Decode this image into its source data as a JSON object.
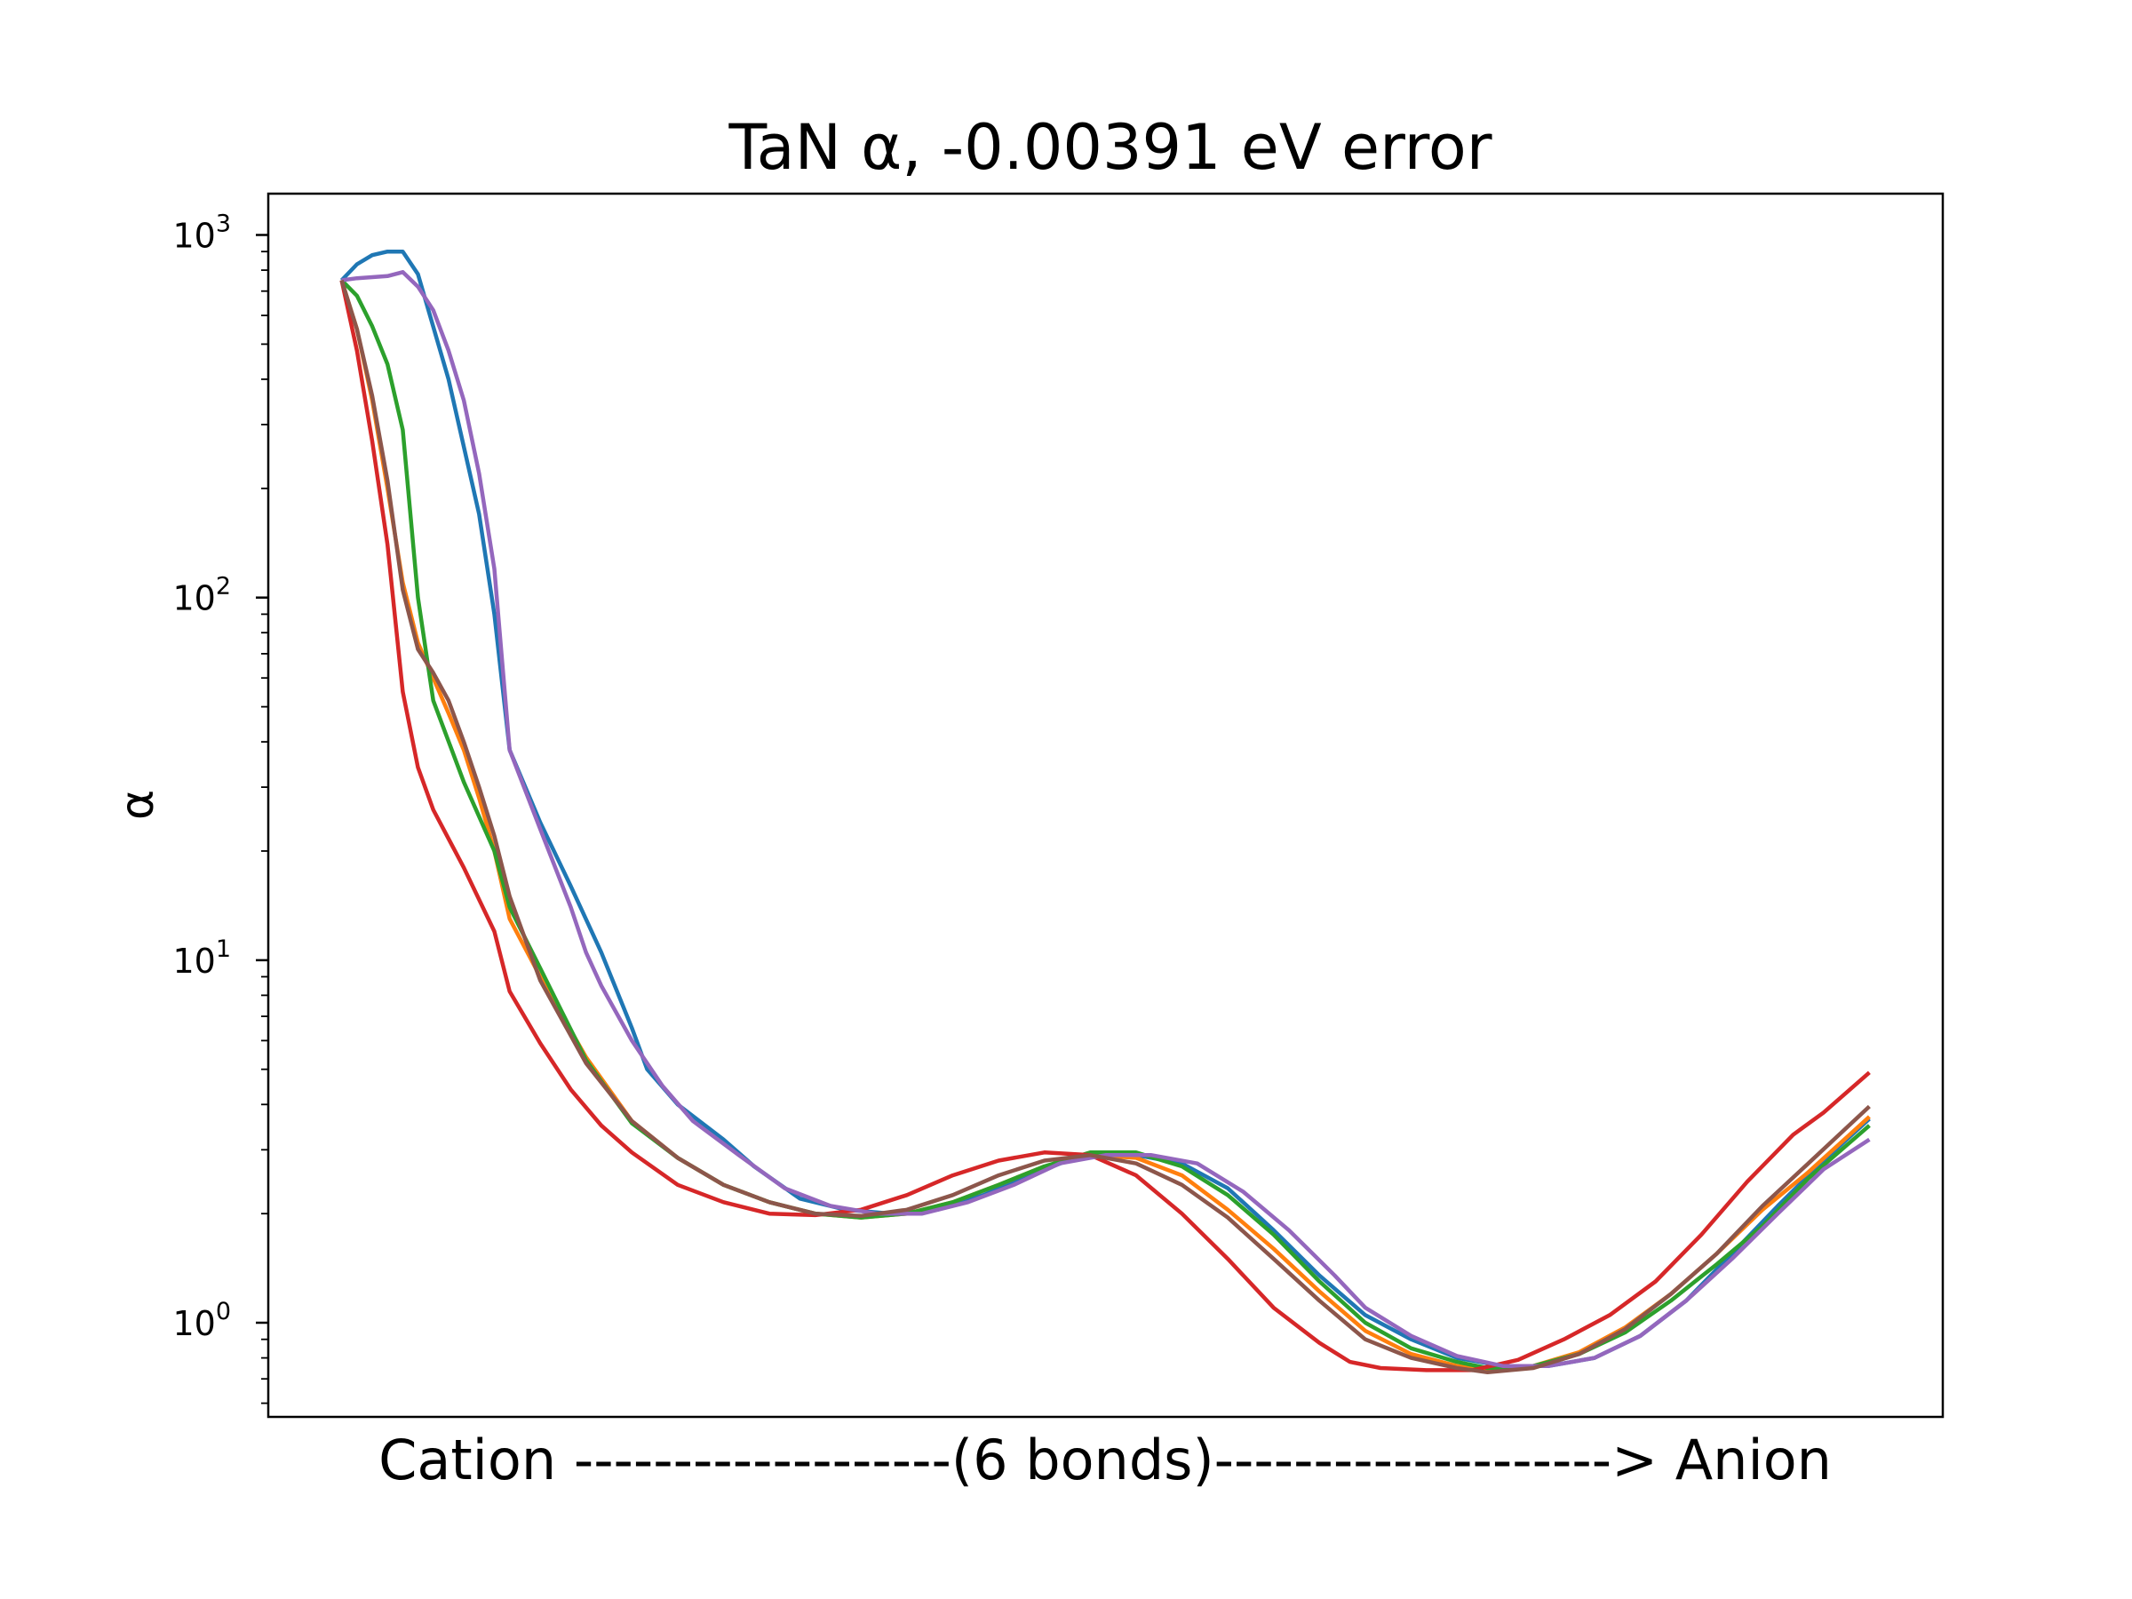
{
  "chart_data": {
    "type": "line",
    "title": "TaN α, -0.00391 eV error",
    "xlabel": "Cation -------------------(6 bonds)--------------------> Anion",
    "ylabel": "α",
    "yscale": "log",
    "ylim": [
      0.55,
      1300
    ],
    "xlim": [
      -0.048,
      1.048
    ],
    "grid": false,
    "legend": "none",
    "yticks": [
      {
        "value": 1,
        "base": "10",
        "exp": "0"
      },
      {
        "value": 10,
        "base": "10",
        "exp": "1"
      },
      {
        "value": 100,
        "base": "10",
        "exp": "2"
      },
      {
        "value": 1000,
        "base": "10",
        "exp": "3"
      }
    ],
    "series": [
      {
        "color": "#1f77b4",
        "points": [
          [
            0,
            750
          ],
          [
            0.01,
            830
          ],
          [
            0.02,
            880
          ],
          [
            0.03,
            900
          ],
          [
            0.04,
            900
          ],
          [
            0.05,
            780
          ],
          [
            0.07,
            400
          ],
          [
            0.09,
            170
          ],
          [
            0.1,
            90
          ],
          [
            0.11,
            38
          ],
          [
            0.13,
            24
          ],
          [
            0.15,
            16
          ],
          [
            0.17,
            10.5
          ],
          [
            0.19,
            6.5
          ],
          [
            0.2,
            5
          ],
          [
            0.22,
            4
          ],
          [
            0.25,
            3.2
          ],
          [
            0.27,
            2.7
          ],
          [
            0.3,
            2.2
          ],
          [
            0.33,
            2.05
          ],
          [
            0.36,
            2.0
          ],
          [
            0.39,
            2.05
          ],
          [
            0.42,
            2.25
          ],
          [
            0.45,
            2.55
          ],
          [
            0.48,
            2.85
          ],
          [
            0.52,
            2.9
          ],
          [
            0.55,
            2.75
          ],
          [
            0.58,
            2.35
          ],
          [
            0.61,
            1.8
          ],
          [
            0.64,
            1.35
          ],
          [
            0.67,
            1.05
          ],
          [
            0.7,
            0.9
          ],
          [
            0.73,
            0.8
          ],
          [
            0.76,
            0.76
          ],
          [
            0.79,
            0.76
          ],
          [
            0.82,
            0.8
          ],
          [
            0.85,
            0.92
          ],
          [
            0.88,
            1.15
          ],
          [
            0.91,
            1.55
          ],
          [
            0.94,
            2.1
          ],
          [
            0.97,
            2.8
          ],
          [
            1.0,
            3.65
          ]
        ]
      },
      {
        "color": "#ff7f0e",
        "points": [
          [
            0,
            750
          ],
          [
            0.01,
            550
          ],
          [
            0.02,
            350
          ],
          [
            0.03,
            200
          ],
          [
            0.04,
            110
          ],
          [
            0.05,
            75
          ],
          [
            0.06,
            60
          ],
          [
            0.07,
            48
          ],
          [
            0.08,
            38
          ],
          [
            0.09,
            28
          ],
          [
            0.1,
            20
          ],
          [
            0.11,
            13
          ],
          [
            0.13,
            9
          ],
          [
            0.16,
            5.4
          ],
          [
            0.19,
            3.6
          ],
          [
            0.22,
            2.85
          ],
          [
            0.25,
            2.4
          ],
          [
            0.28,
            2.15
          ],
          [
            0.31,
            2.0
          ],
          [
            0.34,
            1.95
          ],
          [
            0.37,
            2.0
          ],
          [
            0.4,
            2.15
          ],
          [
            0.43,
            2.4
          ],
          [
            0.46,
            2.7
          ],
          [
            0.49,
            2.9
          ],
          [
            0.52,
            2.85
          ],
          [
            0.55,
            2.55
          ],
          [
            0.58,
            2.05
          ],
          [
            0.61,
            1.6
          ],
          [
            0.64,
            1.22
          ],
          [
            0.67,
            0.95
          ],
          [
            0.7,
            0.82
          ],
          [
            0.73,
            0.76
          ],
          [
            0.75,
            0.74
          ],
          [
            0.78,
            0.76
          ],
          [
            0.81,
            0.83
          ],
          [
            0.84,
            0.97
          ],
          [
            0.87,
            1.2
          ],
          [
            0.9,
            1.55
          ],
          [
            0.93,
            2.05
          ],
          [
            0.96,
            2.6
          ],
          [
            1.0,
            3.7
          ]
        ]
      },
      {
        "color": "#2ca02c",
        "points": [
          [
            0,
            750
          ],
          [
            0.01,
            680
          ],
          [
            0.02,
            560
          ],
          [
            0.03,
            440
          ],
          [
            0.04,
            290
          ],
          [
            0.05,
            100
          ],
          [
            0.06,
            52
          ],
          [
            0.08,
            31
          ],
          [
            0.1,
            20
          ],
          [
            0.11,
            14
          ],
          [
            0.13,
            9.5
          ],
          [
            0.16,
            5.3
          ],
          [
            0.19,
            3.55
          ],
          [
            0.22,
            2.85
          ],
          [
            0.25,
            2.4
          ],
          [
            0.28,
            2.15
          ],
          [
            0.31,
            2.0
          ],
          [
            0.34,
            1.95
          ],
          [
            0.37,
            2.0
          ],
          [
            0.4,
            2.15
          ],
          [
            0.43,
            2.4
          ],
          [
            0.46,
            2.7
          ],
          [
            0.49,
            2.95
          ],
          [
            0.52,
            2.95
          ],
          [
            0.55,
            2.7
          ],
          [
            0.58,
            2.25
          ],
          [
            0.61,
            1.75
          ],
          [
            0.64,
            1.3
          ],
          [
            0.67,
            1.0
          ],
          [
            0.7,
            0.85
          ],
          [
            0.73,
            0.78
          ],
          [
            0.75,
            0.75
          ],
          [
            0.78,
            0.76
          ],
          [
            0.81,
            0.82
          ],
          [
            0.84,
            0.94
          ],
          [
            0.87,
            1.15
          ],
          [
            0.9,
            1.45
          ],
          [
            0.93,
            1.85
          ],
          [
            0.96,
            2.5
          ],
          [
            1.0,
            3.5
          ]
        ]
      },
      {
        "color": "#d62728",
        "points": [
          [
            0,
            750
          ],
          [
            0.01,
            480
          ],
          [
            0.02,
            270
          ],
          [
            0.03,
            140
          ],
          [
            0.04,
            55
          ],
          [
            0.05,
            34
          ],
          [
            0.06,
            26
          ],
          [
            0.08,
            18
          ],
          [
            0.1,
            12
          ],
          [
            0.11,
            8.2
          ],
          [
            0.13,
            5.9
          ],
          [
            0.15,
            4.4
          ],
          [
            0.17,
            3.5
          ],
          [
            0.19,
            2.95
          ],
          [
            0.22,
            2.4
          ],
          [
            0.25,
            2.15
          ],
          [
            0.28,
            2.0
          ],
          [
            0.31,
            1.98
          ],
          [
            0.34,
            2.05
          ],
          [
            0.37,
            2.25
          ],
          [
            0.4,
            2.55
          ],
          [
            0.43,
            2.8
          ],
          [
            0.46,
            2.95
          ],
          [
            0.49,
            2.9
          ],
          [
            0.52,
            2.55
          ],
          [
            0.55,
            2.0
          ],
          [
            0.58,
            1.5
          ],
          [
            0.61,
            1.1
          ],
          [
            0.64,
            0.88
          ],
          [
            0.66,
            0.78
          ],
          [
            0.68,
            0.75
          ],
          [
            0.71,
            0.74
          ],
          [
            0.74,
            0.74
          ],
          [
            0.77,
            0.79
          ],
          [
            0.8,
            0.9
          ],
          [
            0.83,
            1.05
          ],
          [
            0.86,
            1.3
          ],
          [
            0.89,
            1.75
          ],
          [
            0.92,
            2.45
          ],
          [
            0.95,
            3.3
          ],
          [
            0.97,
            3.8
          ],
          [
            1.0,
            4.9
          ]
        ]
      },
      {
        "color": "#9467bd",
        "points": [
          [
            0,
            750
          ],
          [
            0.01,
            760
          ],
          [
            0.03,
            770
          ],
          [
            0.04,
            790
          ],
          [
            0.05,
            720
          ],
          [
            0.06,
            620
          ],
          [
            0.07,
            480
          ],
          [
            0.08,
            350
          ],
          [
            0.09,
            220
          ],
          [
            0.1,
            120
          ],
          [
            0.11,
            38
          ],
          [
            0.13,
            23
          ],
          [
            0.15,
            14
          ],
          [
            0.16,
            10.5
          ],
          [
            0.17,
            8.5
          ],
          [
            0.19,
            6
          ],
          [
            0.21,
            4.5
          ],
          [
            0.23,
            3.6
          ],
          [
            0.26,
            2.9
          ],
          [
            0.29,
            2.35
          ],
          [
            0.32,
            2.1
          ],
          [
            0.35,
            2.0
          ],
          [
            0.38,
            2.0
          ],
          [
            0.41,
            2.15
          ],
          [
            0.44,
            2.4
          ],
          [
            0.47,
            2.75
          ],
          [
            0.5,
            2.9
          ],
          [
            0.53,
            2.9
          ],
          [
            0.56,
            2.75
          ],
          [
            0.59,
            2.3
          ],
          [
            0.62,
            1.8
          ],
          [
            0.65,
            1.35
          ],
          [
            0.67,
            1.1
          ],
          [
            0.7,
            0.92
          ],
          [
            0.73,
            0.81
          ],
          [
            0.76,
            0.76
          ],
          [
            0.79,
            0.76
          ],
          [
            0.82,
            0.8
          ],
          [
            0.85,
            0.92
          ],
          [
            0.88,
            1.15
          ],
          [
            0.91,
            1.5
          ],
          [
            0.94,
            2.0
          ],
          [
            0.97,
            2.65
          ],
          [
            1.0,
            3.2
          ]
        ]
      },
      {
        "color": "#8c564b",
        "points": [
          [
            0,
            750
          ],
          [
            0.01,
            550
          ],
          [
            0.02,
            360
          ],
          [
            0.03,
            210
          ],
          [
            0.04,
            105
          ],
          [
            0.05,
            72
          ],
          [
            0.06,
            62
          ],
          [
            0.07,
            52
          ],
          [
            0.08,
            40
          ],
          [
            0.09,
            30
          ],
          [
            0.1,
            22
          ],
          [
            0.11,
            15
          ],
          [
            0.13,
            8.8
          ],
          [
            0.16,
            5.2
          ],
          [
            0.19,
            3.6
          ],
          [
            0.22,
            2.85
          ],
          [
            0.25,
            2.4
          ],
          [
            0.28,
            2.15
          ],
          [
            0.31,
            2.0
          ],
          [
            0.34,
            1.97
          ],
          [
            0.37,
            2.05
          ],
          [
            0.4,
            2.25
          ],
          [
            0.43,
            2.55
          ],
          [
            0.46,
            2.8
          ],
          [
            0.49,
            2.9
          ],
          [
            0.52,
            2.75
          ],
          [
            0.55,
            2.4
          ],
          [
            0.58,
            1.95
          ],
          [
            0.61,
            1.5
          ],
          [
            0.64,
            1.15
          ],
          [
            0.67,
            0.9
          ],
          [
            0.7,
            0.8
          ],
          [
            0.73,
            0.75
          ],
          [
            0.75,
            0.73
          ],
          [
            0.78,
            0.75
          ],
          [
            0.81,
            0.82
          ],
          [
            0.84,
            0.96
          ],
          [
            0.87,
            1.2
          ],
          [
            0.9,
            1.55
          ],
          [
            0.93,
            2.1
          ],
          [
            0.96,
            2.75
          ],
          [
            1.0,
            3.95
          ]
        ]
      }
    ]
  }
}
